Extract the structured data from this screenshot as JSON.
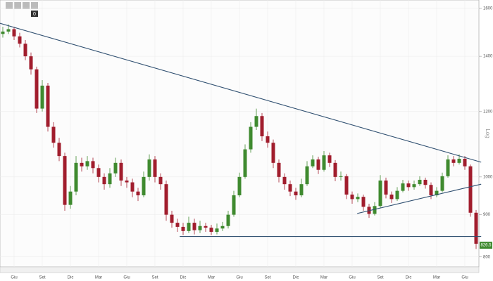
{
  "toolbar": {
    "badge": "0"
  },
  "chart_data": {
    "type": "candlestick",
    "log_scale": true,
    "scale_label": "Log",
    "grid": true,
    "up_color": "#3f8a2f",
    "down_color": "#a11d2d",
    "line_color": "#2f4f70",
    "ylim": [
      781,
      1638
    ],
    "yticks": [
      800,
      900,
      1000,
      1200,
      1400,
      1600
    ],
    "categories": [
      null,
      null,
      "Giu",
      null,
      null,
      null,
      null,
      "Set",
      null,
      null,
      null,
      null,
      "Dic",
      null,
      null,
      null,
      null,
      "Mar",
      null,
      null,
      null,
      null,
      "Giu",
      null,
      null,
      null,
      null,
      "Set",
      null,
      null,
      null,
      null,
      "Dic",
      null,
      null,
      null,
      null,
      "Mar",
      null,
      null,
      null,
      null,
      "Giu",
      null,
      null,
      null,
      null,
      "Set",
      null,
      null,
      null,
      null,
      "Dic",
      null,
      null,
      null,
      null,
      "Mar",
      null,
      null,
      null,
      null,
      "Giu",
      null,
      null,
      null,
      null,
      "Set",
      null,
      null,
      null,
      null,
      "Dic",
      null,
      null,
      null,
      null,
      "Mar",
      null,
      null,
      null,
      null,
      "Giu",
      null,
      null
    ],
    "candles": [
      [
        1490,
        1520,
        1475,
        1500
      ],
      [
        1500,
        1530,
        1490,
        1510
      ],
      [
        1510,
        1520,
        1465,
        1480
      ],
      [
        1480,
        1495,
        1435,
        1450
      ],
      [
        1450,
        1465,
        1385,
        1400
      ],
      [
        1400,
        1415,
        1330,
        1350
      ],
      [
        1350,
        1360,
        1195,
        1210
      ],
      [
        1210,
        1310,
        1200,
        1290
      ],
      [
        1290,
        1300,
        1135,
        1150
      ],
      [
        1150,
        1165,
        1085,
        1100
      ],
      [
        1100,
        1115,
        1045,
        1060
      ],
      [
        1060,
        1070,
        910,
        925
      ],
      [
        925,
        975,
        915,
        960
      ],
      [
        960,
        1060,
        950,
        1040
      ],
      [
        1040,
        1055,
        1015,
        1030
      ],
      [
        1030,
        1060,
        1020,
        1045
      ],
      [
        1045,
        1055,
        1010,
        1025
      ],
      [
        1025,
        1035,
        985,
        1000
      ],
      [
        1000,
        1010,
        965,
        980
      ],
      [
        980,
        1025,
        970,
        1010
      ],
      [
        1010,
        1055,
        1000,
        1040
      ],
      [
        1040,
        1050,
        975,
        990
      ],
      [
        990,
        1000,
        970,
        985
      ],
      [
        985,
        995,
        945,
        960
      ],
      [
        960,
        970,
        935,
        950
      ],
      [
        950,
        1015,
        945,
        1000
      ],
      [
        1000,
        1065,
        990,
        1050
      ],
      [
        1050,
        1060,
        985,
        1000
      ],
      [
        1000,
        1010,
        965,
        980
      ],
      [
        980,
        990,
        885,
        900
      ],
      [
        900,
        910,
        868,
        880
      ],
      [
        880,
        890,
        858,
        870
      ],
      [
        870,
        880,
        850,
        860
      ],
      [
        860,
        895,
        855,
        880
      ],
      [
        880,
        890,
        852,
        862
      ],
      [
        862,
        885,
        855,
        872
      ],
      [
        872,
        880,
        858,
        868
      ],
      [
        868,
        875,
        850,
        858
      ],
      [
        858,
        878,
        852,
        866
      ],
      [
        866,
        882,
        860,
        872
      ],
      [
        872,
        910,
        866,
        900
      ],
      [
        900,
        962,
        895,
        950
      ],
      [
        950,
        1012,
        945,
        1000
      ],
      [
        1000,
        1095,
        995,
        1080
      ],
      [
        1080,
        1165,
        1070,
        1150
      ],
      [
        1150,
        1210,
        1140,
        1185
      ],
      [
        1185,
        1195,
        1105,
        1120
      ],
      [
        1120,
        1135,
        1085,
        1100
      ],
      [
        1100,
        1110,
        1025,
        1040
      ],
      [
        1040,
        1050,
        985,
        1000
      ],
      [
        1000,
        1010,
        965,
        980
      ],
      [
        980,
        990,
        948,
        960
      ],
      [
        960,
        970,
        938,
        950
      ],
      [
        950,
        995,
        945,
        980
      ],
      [
        980,
        1045,
        975,
        1030
      ],
      [
        1030,
        1062,
        1025,
        1050
      ],
      [
        1050,
        1058,
        1008,
        1020
      ],
      [
        1020,
        1075,
        1015,
        1062
      ],
      [
        1062,
        1070,
        1028,
        1040
      ],
      [
        1040,
        1048,
        988,
        1000
      ],
      [
        1000,
        1015,
        990,
        1002
      ],
      [
        1002,
        1008,
        940,
        952
      ],
      [
        952,
        960,
        928,
        940
      ],
      [
        940,
        955,
        932,
        946
      ],
      [
        946,
        952,
        910,
        920
      ],
      [
        920,
        928,
        892,
        902
      ],
      [
        902,
        932,
        898,
        922
      ],
      [
        922,
        1005,
        918,
        990
      ],
      [
        990,
        998,
        942,
        952
      ],
      [
        952,
        960,
        930,
        940
      ],
      [
        940,
        972,
        935,
        962
      ],
      [
        962,
        992,
        958,
        982
      ],
      [
        982,
        990,
        962,
        972
      ],
      [
        972,
        990,
        965,
        980
      ],
      [
        980,
        1002,
        975,
        992
      ],
      [
        992,
        998,
        968,
        978
      ],
      [
        978,
        985,
        940,
        950
      ],
      [
        950,
        972,
        945,
        962
      ],
      [
        962,
        1012,
        958,
        1002
      ],
      [
        1002,
        1062,
        998,
        1050
      ],
      [
        1050,
        1060,
        1030,
        1040
      ],
      [
        1040,
        1065,
        1035,
        1052
      ],
      [
        1052,
        1060,
        1020,
        1030
      ],
      [
        1030,
        1035,
        895,
        905
      ],
      [
        905,
        912,
        818,
        830
      ]
    ],
    "trendlines": [
      {
        "x": [
          -0.5,
          84.9
        ],
        "y": [
          1535,
          1042
        ]
      },
      {
        "x": [
          62.9,
          84.9
        ],
        "y": [
          903,
          980
        ]
      },
      {
        "x": [
          31.4,
          84.9
        ],
        "y": [
          847,
          847
        ]
      }
    ],
    "last_price": 826.5
  }
}
